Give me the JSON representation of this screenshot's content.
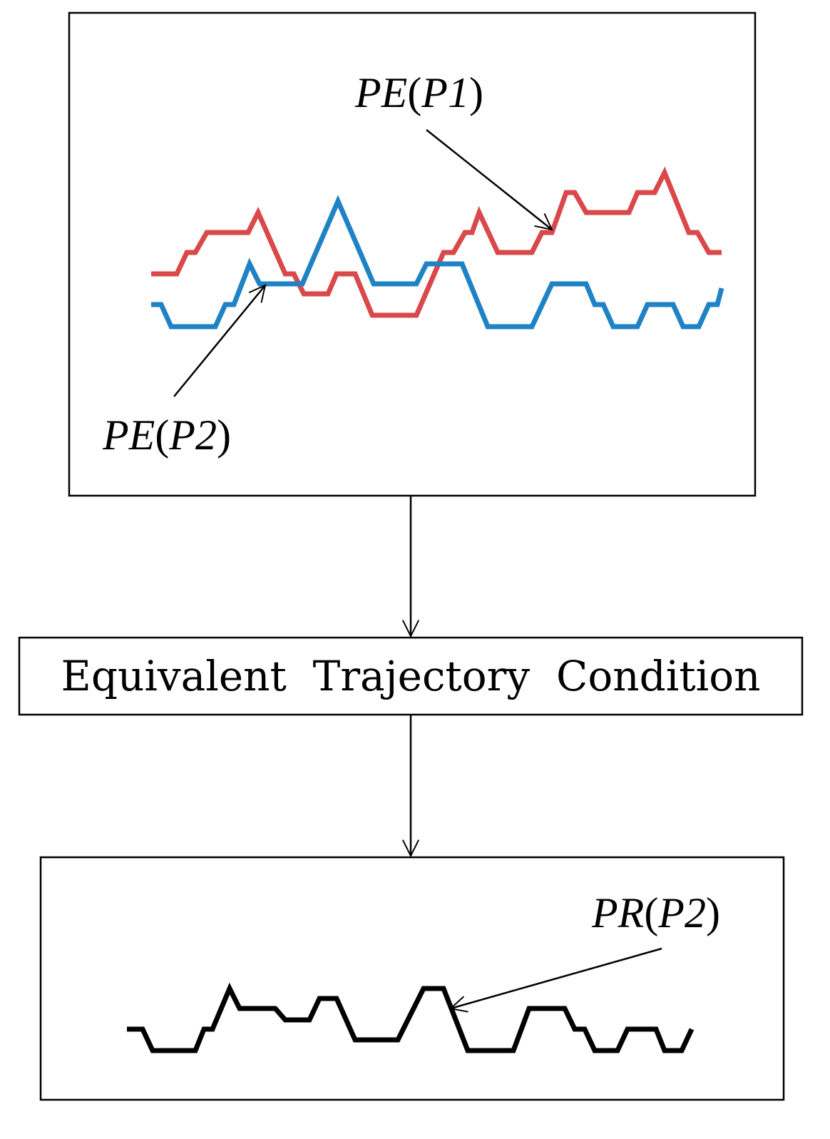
{
  "top_panel": {
    "series": [
      {
        "label_fn": "PE",
        "label_arg": "P1",
        "color": "#d9484a"
      },
      {
        "label_fn": "PE",
        "label_arg": "P2",
        "color": "#1f82c4"
      }
    ]
  },
  "process_box": {
    "label": "Equivalent  Trajectory  Condition"
  },
  "bottom_panel": {
    "series": [
      {
        "label_fn": "PR",
        "label_arg": "P2",
        "color": "#000000"
      }
    ]
  }
}
